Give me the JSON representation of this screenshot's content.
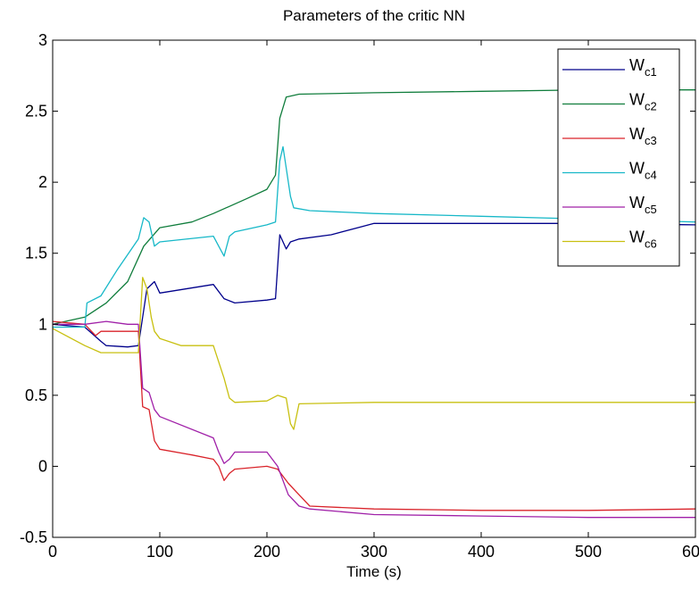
{
  "chart_data": {
    "type": "line",
    "title": "Parameters of the critic NN",
    "xlabel": "Time (s)",
    "ylabel": "",
    "xlim": [
      0,
      600
    ],
    "ylim": [
      -0.5,
      3
    ],
    "xticks": [
      0,
      100,
      200,
      300,
      400,
      500,
      600
    ],
    "yticks": [
      -0.5,
      0,
      0.5,
      1,
      1.5,
      2,
      2.5,
      3
    ],
    "xtick_labels": [
      "0",
      "100",
      "200",
      "300",
      "400",
      "500",
      "600"
    ],
    "ytick_labels": [
      "-0.5",
      "0",
      "0.5",
      "1",
      "1.5",
      "2",
      "2.5",
      "3"
    ],
    "grid": false,
    "legend_position": "top-right",
    "series": [
      {
        "name": "W_c1",
        "label_main": "W",
        "label_sub": "c1",
        "color": "#00008b",
        "x": [
          0,
          30,
          45,
          50,
          70,
          80,
          84,
          88,
          95,
          100,
          150,
          160,
          170,
          200,
          208,
          212,
          218,
          222,
          230,
          260,
          300,
          400,
          500,
          600
        ],
        "y": [
          1.0,
          0.98,
          0.88,
          0.85,
          0.84,
          0.85,
          1.05,
          1.25,
          1.3,
          1.22,
          1.28,
          1.18,
          1.15,
          1.17,
          1.18,
          1.63,
          1.53,
          1.58,
          1.6,
          1.63,
          1.71,
          1.71,
          1.71,
          1.7
        ]
      },
      {
        "name": "W_c2",
        "label_main": "W",
        "label_sub": "c2",
        "color": "#107d3c",
        "x": [
          0,
          30,
          50,
          70,
          85,
          100,
          130,
          150,
          180,
          200,
          208,
          212,
          218,
          230,
          300,
          400,
          500,
          600
        ],
        "y": [
          1.0,
          1.05,
          1.15,
          1.3,
          1.55,
          1.68,
          1.72,
          1.78,
          1.88,
          1.95,
          2.05,
          2.45,
          2.6,
          2.62,
          2.63,
          2.64,
          2.65,
          2.65
        ]
      },
      {
        "name": "W_c3",
        "label_main": "W",
        "label_sub": "c3",
        "color": "#d9232a",
        "x": [
          0,
          30,
          40,
          45,
          60,
          80,
          84,
          90,
          95,
          100,
          130,
          150,
          155,
          160,
          165,
          170,
          200,
          210,
          220,
          230,
          240,
          300,
          400,
          500,
          600
        ],
        "y": [
          1.02,
          1.0,
          0.92,
          0.95,
          0.95,
          0.95,
          0.42,
          0.4,
          0.18,
          0.12,
          0.08,
          0.05,
          0.0,
          -0.1,
          -0.05,
          -0.02,
          0.0,
          -0.02,
          -0.12,
          -0.2,
          -0.28,
          -0.3,
          -0.31,
          -0.31,
          -0.3
        ]
      },
      {
        "name": "W_c4",
        "label_main": "W",
        "label_sub": "c4",
        "color": "#17b8c8",
        "x": [
          0,
          30,
          32,
          45,
          60,
          80,
          85,
          90,
          95,
          100,
          150,
          155,
          160,
          165,
          170,
          200,
          208,
          212,
          215,
          218,
          222,
          225,
          240,
          300,
          400,
          500,
          600
        ],
        "y": [
          0.98,
          0.98,
          1.15,
          1.2,
          1.38,
          1.6,
          1.75,
          1.72,
          1.55,
          1.58,
          1.62,
          1.55,
          1.48,
          1.62,
          1.65,
          1.7,
          1.72,
          2.15,
          2.25,
          2.1,
          1.9,
          1.82,
          1.8,
          1.78,
          1.76,
          1.74,
          1.72
        ]
      },
      {
        "name": "W_c5",
        "label_main": "W",
        "label_sub": "c5",
        "color": "#a020a8",
        "x": [
          0,
          30,
          50,
          70,
          80,
          84,
          90,
          95,
          100,
          150,
          155,
          160,
          165,
          170,
          200,
          210,
          220,
          230,
          240,
          300,
          400,
          500,
          600
        ],
        "y": [
          1.0,
          1.0,
          1.02,
          1.0,
          1.0,
          0.55,
          0.52,
          0.4,
          0.35,
          0.2,
          0.1,
          0.02,
          0.05,
          0.1,
          0.1,
          0.0,
          -0.2,
          -0.28,
          -0.3,
          -0.34,
          -0.35,
          -0.36,
          -0.36
        ]
      },
      {
        "name": "W_c6",
        "label_main": "W",
        "label_sub": "c6",
        "color": "#c8c010",
        "x": [
          0,
          30,
          45,
          60,
          75,
          80,
          84,
          88,
          92,
          95,
          100,
          120,
          150,
          160,
          165,
          170,
          200,
          210,
          218,
          222,
          225,
          230,
          300,
          400,
          500,
          600
        ],
        "y": [
          0.97,
          0.85,
          0.8,
          0.8,
          0.8,
          0.8,
          1.33,
          1.25,
          1.05,
          0.95,
          0.9,
          0.85,
          0.85,
          0.62,
          0.48,
          0.45,
          0.46,
          0.5,
          0.48,
          0.3,
          0.26,
          0.44,
          0.45,
          0.45,
          0.45,
          0.45
        ]
      }
    ]
  }
}
